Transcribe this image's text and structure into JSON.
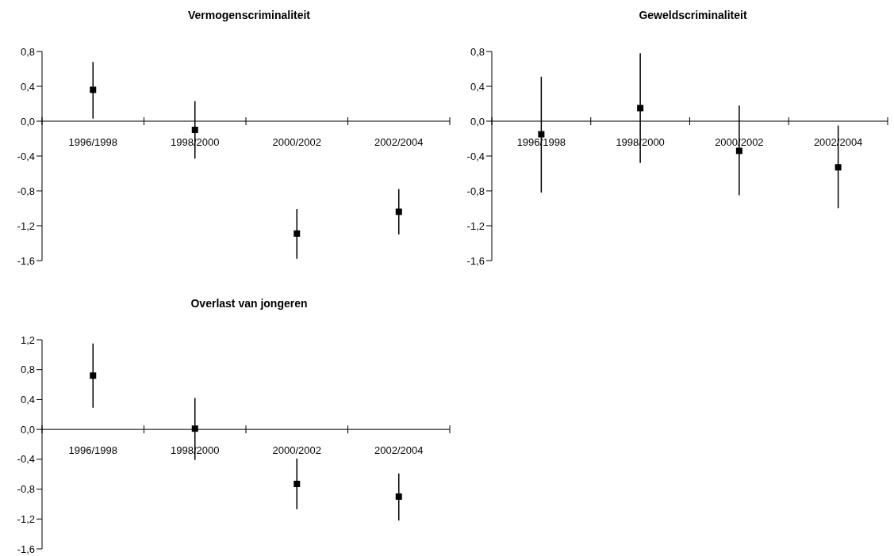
{
  "chart_data": [
    {
      "type": "scatter",
      "title": "Vermogenscriminaliteit",
      "categories": [
        "1996/1998",
        "1998/2000",
        "2000/2002",
        "2002/2004"
      ],
      "values": [
        0.36,
        -0.1,
        -1.29,
        -1.04
      ],
      "errors": [
        [
          0.03,
          0.68
        ],
        [
          -0.43,
          0.23
        ],
        [
          -1.58,
          -1.01
        ],
        [
          -1.3,
          -0.78
        ]
      ],
      "color": "#000000",
      "marker": "square",
      "ylim": [
        -1.6,
        0.8
      ],
      "yticks": [
        {
          "value": 0.8,
          "label": "0,8"
        },
        {
          "value": 0.4,
          "label": "0,4"
        },
        {
          "value": 0,
          "label": "0,0"
        },
        {
          "value": -0.4,
          "label": "-0,4"
        },
        {
          "value": -0.8,
          "label": "-0,8"
        },
        {
          "value": -1.2,
          "label": "-1,2"
        },
        {
          "value": -1.6,
          "label": "-1,6"
        }
      ]
    },
    {
      "type": "scatter",
      "title": "Geweldscriminaliteit",
      "categories": [
        "1996/1998",
        "1998/2000",
        "2000/2002",
        "2002/2004"
      ],
      "values": [
        -0.15,
        0.15,
        -0.34,
        -0.53
      ],
      "errors": [
        [
          -0.82,
          0.51
        ],
        [
          -0.48,
          0.78
        ],
        [
          -0.85,
          0.18
        ],
        [
          -1.0,
          -0.05
        ]
      ],
      "color": "#000000",
      "marker": "square",
      "ylim": [
        -1.6,
        0.8
      ],
      "yticks": [
        {
          "value": 0.8,
          "label": "0,8"
        },
        {
          "value": 0.4,
          "label": "0,4"
        },
        {
          "value": 0,
          "label": "0,0"
        },
        {
          "value": -0.4,
          "label": "-0,4"
        },
        {
          "value": -0.8,
          "label": "-0,8"
        },
        {
          "value": -1.2,
          "label": "-1,2"
        },
        {
          "value": -1.6,
          "label": "-1,6"
        }
      ]
    },
    {
      "type": "scatter",
      "title": "Overlast van jongeren",
      "categories": [
        "1996/1998",
        "1998/2000",
        "2000/2002",
        "2002/2004"
      ],
      "values": [
        0.72,
        0.01,
        -0.73,
        -0.9
      ],
      "errors": [
        [
          0.29,
          1.15
        ],
        [
          -0.41,
          0.42
        ],
        [
          -1.07,
          -0.39
        ],
        [
          -1.22,
          -0.59
        ]
      ],
      "color": "#000000",
      "marker": "square",
      "ylim": [
        -1.6,
        1.2
      ],
      "yticks": [
        {
          "value": 1.2,
          "label": "1,2"
        },
        {
          "value": 0.8,
          "label": "0,8"
        },
        {
          "value": 0.4,
          "label": "0,4"
        },
        {
          "value": 0,
          "label": "0,0"
        },
        {
          "value": -0.4,
          "label": "-0,4"
        },
        {
          "value": -0.8,
          "label": "-0,8"
        },
        {
          "value": -1.2,
          "label": "-1,2"
        },
        {
          "value": -1.6,
          "label": "-1,6"
        }
      ]
    }
  ]
}
